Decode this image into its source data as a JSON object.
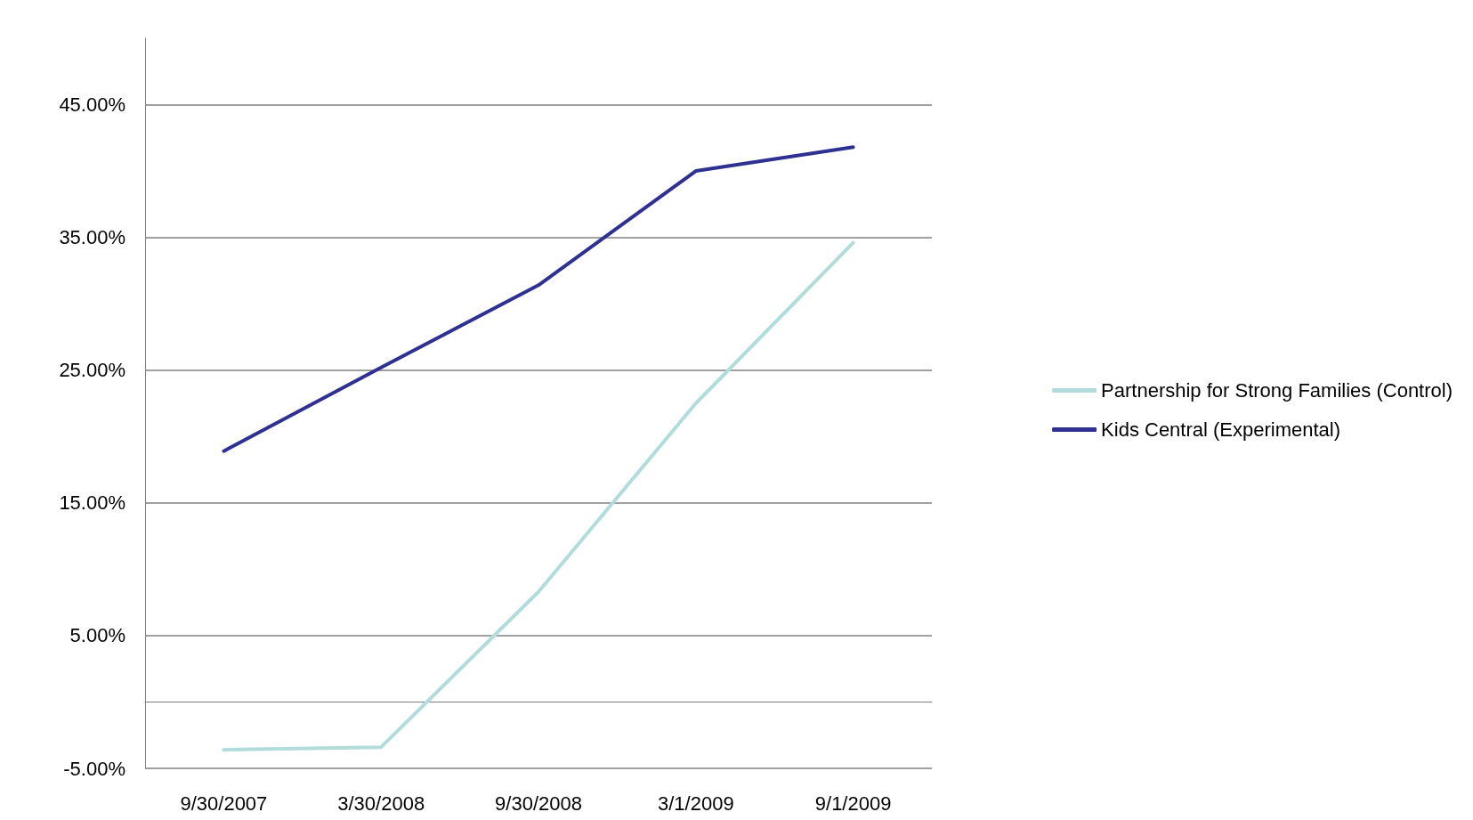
{
  "chart_data": {
    "type": "line",
    "categories": [
      "9/30/2007",
      "3/30/2008",
      "9/30/2008",
      "3/1/2009",
      "9/1/2009"
    ],
    "series": [
      {
        "name": "Partnership for Strong Families (Control)",
        "color": "#b2dcdc",
        "values": [
          -3.6,
          -3.4,
          8.3,
          22.5,
          34.6
        ]
      },
      {
        "name": "Kids Central (Experimental)",
        "color": "#2e3192",
        "values": [
          18.9,
          25.2,
          31.4,
          40.0,
          41.8
        ]
      }
    ],
    "ylim": [
      -5,
      50
    ],
    "yticks": [
      {
        "value": -5,
        "label": "-5.00%"
      },
      {
        "value": 5,
        "label": "5.00%"
      },
      {
        "value": 15,
        "label": "15.00%"
      },
      {
        "value": 25,
        "label": "25.00%"
      },
      {
        "value": 35,
        "label": "35.00%"
      },
      {
        "value": 45,
        "label": "45.00%"
      }
    ],
    "grid": "y",
    "legend": "right",
    "marker": "none",
    "line_style": "solid"
  }
}
